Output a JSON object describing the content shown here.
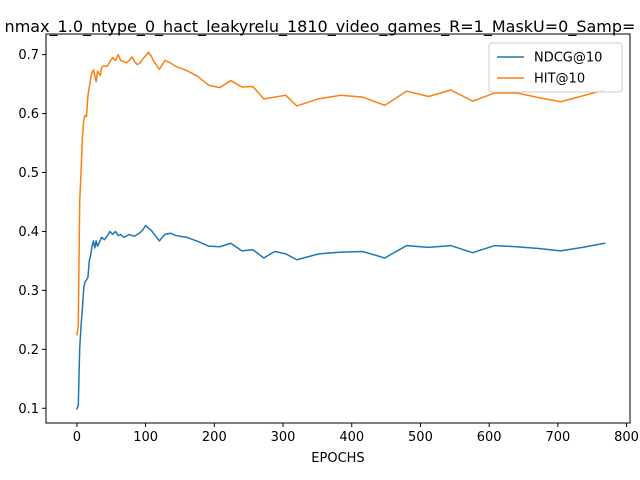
{
  "chart_data": {
    "type": "line",
    "title": "nmax_1.0_ntype_0_hact_leakyrelu_1810_video_games_R=1_MaskU=0_Samp=",
    "xlabel": "EPOCHS",
    "ylabel": "",
    "xlim": [
      -45,
      805
    ],
    "ylim": [
      0.075,
      0.735
    ],
    "xticks": [
      0,
      100,
      200,
      300,
      400,
      500,
      600,
      700,
      800
    ],
    "yticks": [
      0.1,
      0.2,
      0.3,
      0.4,
      0.5,
      0.6,
      0.7
    ],
    "grid": false,
    "legend": "top-right",
    "series": [
      {
        "name": "NDCG@10",
        "color": "#1f77b4",
        "x": [
          0,
          2,
          4,
          6,
          8,
          10,
          12,
          14,
          16,
          18,
          20,
          22,
          24,
          26,
          28,
          30,
          32,
          34,
          36,
          40,
          44,
          48,
          52,
          56,
          60,
          64,
          68,
          72,
          76,
          80,
          84,
          88,
          92,
          96,
          100,
          104,
          108,
          112,
          116,
          120,
          128,
          136,
          144,
          160,
          176,
          192,
          208,
          224,
          240,
          256,
          272,
          288,
          304,
          320,
          352,
          384,
          416,
          448,
          480,
          512,
          544,
          576,
          608,
          640,
          672,
          704,
          736,
          768
        ],
        "y": [
          0.099,
          0.105,
          0.2,
          0.24,
          0.27,
          0.305,
          0.315,
          0.318,
          0.322,
          0.35,
          0.36,
          0.375,
          0.384,
          0.372,
          0.384,
          0.375,
          0.38,
          0.385,
          0.39,
          0.386,
          0.392,
          0.4,
          0.395,
          0.4,
          0.393,
          0.395,
          0.39,
          0.392,
          0.395,
          0.393,
          0.392,
          0.395,
          0.398,
          0.403,
          0.41,
          0.406,
          0.402,
          0.396,
          0.39,
          0.384,
          0.395,
          0.397,
          0.393,
          0.39,
          0.383,
          0.375,
          0.374,
          0.38,
          0.367,
          0.369,
          0.355,
          0.366,
          0.362,
          0.352,
          0.362,
          0.365,
          0.366,
          0.355,
          0.376,
          0.373,
          0.376,
          0.364,
          0.376,
          0.374,
          0.371,
          0.367,
          0.373,
          0.38
        ]
      },
      {
        "name": "HIT@10",
        "color": "#ff7f0e",
        "x": [
          0,
          2,
          4,
          6,
          8,
          10,
          12,
          14,
          16,
          18,
          20,
          22,
          24,
          26,
          28,
          30,
          32,
          34,
          36,
          40,
          44,
          48,
          52,
          56,
          60,
          64,
          68,
          72,
          76,
          80,
          84,
          88,
          92,
          96,
          100,
          104,
          108,
          112,
          116,
          120,
          128,
          136,
          144,
          160,
          176,
          192,
          208,
          224,
          240,
          256,
          272,
          288,
          304,
          320,
          352,
          384,
          416,
          448,
          480,
          512,
          544,
          576,
          608,
          640,
          672,
          704,
          736,
          768
        ],
        "y": [
          0.225,
          0.24,
          0.45,
          0.5,
          0.56,
          0.59,
          0.597,
          0.595,
          0.63,
          0.645,
          0.66,
          0.67,
          0.674,
          0.665,
          0.654,
          0.672,
          0.668,
          0.665,
          0.679,
          0.681,
          0.68,
          0.688,
          0.695,
          0.69,
          0.7,
          0.69,
          0.688,
          0.686,
          0.69,
          0.696,
          0.688,
          0.683,
          0.686,
          0.693,
          0.698,
          0.704,
          0.698,
          0.688,
          0.682,
          0.675,
          0.69,
          0.686,
          0.68,
          0.673,
          0.663,
          0.648,
          0.644,
          0.656,
          0.645,
          0.646,
          0.625,
          0.628,
          0.631,
          0.613,
          0.625,
          0.631,
          0.628,
          0.614,
          0.638,
          0.629,
          0.64,
          0.621,
          0.635,
          0.635,
          0.627,
          0.62,
          0.63,
          0.64
        ]
      }
    ]
  }
}
